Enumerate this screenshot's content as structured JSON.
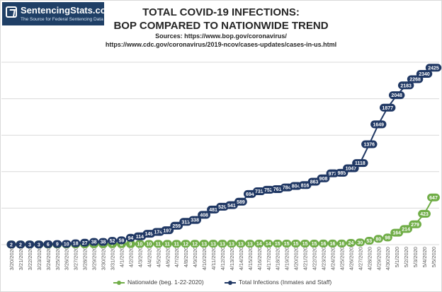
{
  "header": {
    "logo_name": "SentencingStats.com",
    "logo_tagline": "The Source for Federal Sentencing Data",
    "title_line1": "TOTAL COVID-19 INFECTIONS:",
    "title_line2": "BOP COMPARED TO NATIONWIDE TREND",
    "sources_line1": "Sources: https://www.bop.gov/coronavirus/",
    "sources_line2": "https://www.cdc.gov/coronavirus/2019-ncov/cases-updates/cases-in-us.html"
  },
  "colors": {
    "bop": "#203864",
    "nationwide": "#70ad47",
    "grid": "#d9d9d9"
  },
  "chart_data": {
    "type": "line",
    "grid": "horizontal",
    "legend_position": "bottom",
    "categories": [
      "3/20/2020",
      "3/21/2020",
      "3/22/2020",
      "3/23/2020",
      "3/24/2020",
      "3/25/2020",
      "3/26/2020",
      "3/27/2020",
      "3/28/2020",
      "3/29/2020",
      "3/30/2020",
      "3/31/2020",
      "4/1/2020",
      "4/2/2020",
      "4/3/2020",
      "4/4/2020",
      "4/5/2020",
      "4/6/2020",
      "4/7/2020",
      "4/8/2020",
      "4/9/2020",
      "4/10/2020",
      "4/11/2020",
      "4/12/2020",
      "4/13/2020",
      "4/14/2020",
      "4/15/2020",
      "4/16/2020",
      "4/17/2020",
      "4/18/2020",
      "4/19/2020",
      "4/20/2020",
      "4/21/2020",
      "4/22/2020",
      "4/23/2020",
      "4/24/2020",
      "4/25/2020",
      "4/26/2020",
      "4/27/2020",
      "4/28/2020",
      "4/29/2020",
      "4/30/2020",
      "5/1/2020",
      "5/2/2020",
      "5/3/2020",
      "5/4/2020",
      "5/5/2020"
    ],
    "series": [
      {
        "name": "Nationwide (beg. 1-22-2020)",
        "values": [
          2,
          2,
          2,
          3,
          3,
          4,
          4,
          5,
          5,
          6,
          6,
          7,
          8,
          9,
          10,
          10,
          11,
          11,
          11,
          12,
          12,
          13,
          13,
          13,
          13,
          13,
          13,
          14,
          14,
          15,
          15,
          15,
          15,
          15,
          16,
          16,
          16,
          24,
          30,
          53,
          80,
          98,
          164,
          214,
          279,
          423,
          647
        ]
      },
      {
        "name": "Total Infections (Inmates and Staff)",
        "values": [
          2,
          2,
          3,
          3,
          6,
          9,
          10,
          18,
          27,
          38,
          38,
          52,
          59,
          94,
          114,
          149,
          174,
          197,
          259,
          313,
          338,
          408,
          481,
          520,
          541,
          589,
          694,
          731,
          752,
          761,
          784,
          804,
          816,
          863,
          908,
          977,
          985,
          1047,
          1118,
          1376,
          1649,
          1877,
          2048,
          2183,
          2268,
          2340,
          2425
        ]
      }
    ],
    "ylim": [
      0,
      2500
    ],
    "xlabel": "",
    "ylabel": ""
  }
}
